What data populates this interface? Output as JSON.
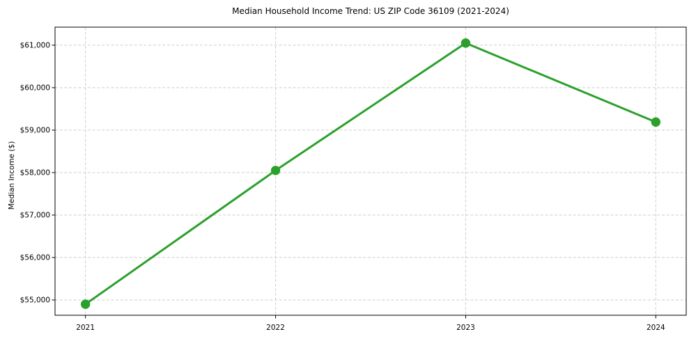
{
  "figure": {
    "background": "#ffffff"
  },
  "chart_data": {
    "type": "line",
    "title": "Median Household Income Trend: US ZIP Code 36109 (2021-2024)",
    "xlabel": "",
    "ylabel": "Median Income ($)",
    "x": [
      2021,
      2022,
      2023,
      2024
    ],
    "xtick_labels": [
      "2021",
      "2022",
      "2023",
      "2024"
    ],
    "values": [
      54900,
      58050,
      61050,
      59190
    ],
    "yticks": [
      55000,
      56000,
      57000,
      58000,
      59000,
      60000,
      61000
    ],
    "ytick_labels": [
      "$55,000",
      "$56,000",
      "$57,000",
      "$58,000",
      "$59,000",
      "$60,000",
      "$61,000"
    ],
    "xlim": [
      2020.84,
      2024.16
    ],
    "ylim": [
      54640,
      61425
    ],
    "grid": true,
    "grid_style": "dashed",
    "grid_color": "#cdcdcd",
    "line_color": "#2ca02c",
    "marker": "circle",
    "axes_color": "#000000",
    "legend": "none"
  }
}
